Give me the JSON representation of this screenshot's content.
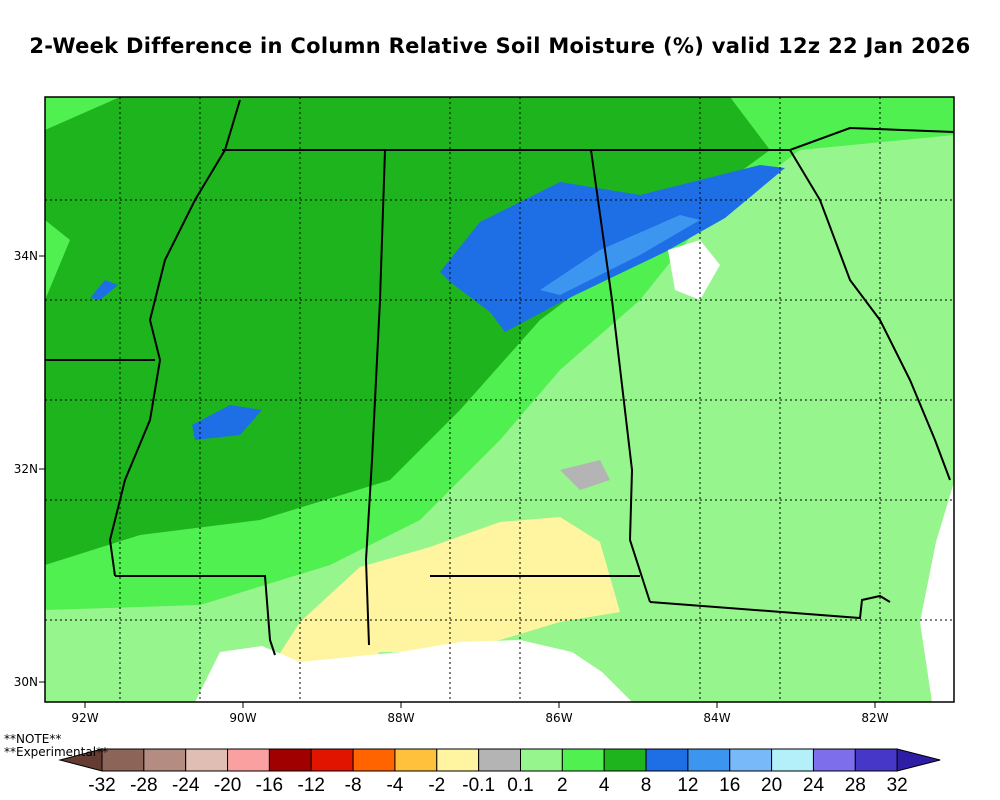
{
  "title": "2-Week Difference in Column Relative Soil Moisture (%) valid 12z 22 Jan 2026",
  "map": {
    "lon_labels": [
      "92W",
      "90W",
      "88W",
      "86W",
      "84W",
      "82W"
    ],
    "lat_labels": [
      "34N",
      "32N",
      "30N"
    ],
    "colors": {
      "water": "#ffffff",
      "border": "#000000"
    }
  },
  "colorbar": {
    "labels": [
      "-32",
      "-28",
      "-24",
      "-20",
      "-16",
      "-12",
      "-8",
      "-4",
      "-2",
      "-0.1",
      "0.1",
      "2",
      "4",
      "8",
      "12",
      "16",
      "20",
      "24",
      "28",
      "32"
    ],
    "colors": [
      "#643c32",
      "#8c6458",
      "#b48c82",
      "#e1beb4",
      "#faa0a0",
      "#a00000",
      "#e11400",
      "#ff6400",
      "#ffc03c",
      "#fff5a0",
      "#b4b4b4",
      "#96f58c",
      "#50f050",
      "#1eb41e",
      "#1e6ee6",
      "#3c96f0",
      "#78b9fa",
      "#b4f0fa",
      "#7d6eeb",
      "#4637c8",
      "#2d1ea5"
    ]
  },
  "notes": [
    "**NOTE**",
    "**Experimental**"
  ]
}
